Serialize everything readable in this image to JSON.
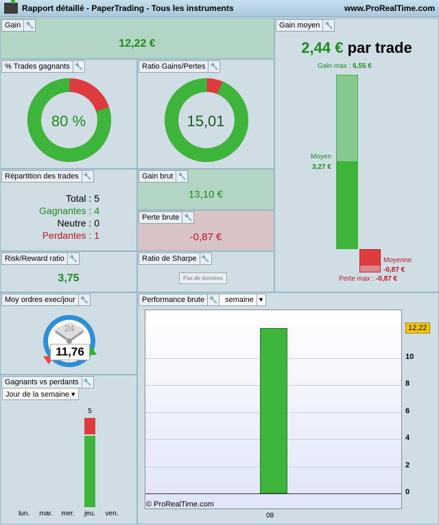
{
  "title": "Rapport détaillé - PaperTrading - Tous les instruments",
  "site": "www.ProRealTime.com",
  "logo": "DEMO",
  "gain": {
    "label": "Gain",
    "value": "12,22 €"
  },
  "gain_moyen": {
    "label": "Gain moyen",
    "value": "2,44 €",
    "suffix": "par trade",
    "gain_max_label": "Gain max :",
    "gain_max": "6,55 €",
    "moyen_label": "Moyen",
    "moyen": "3,27 €",
    "moyenne_label": "Moyenne",
    "moyenne": "-0,87 €",
    "perte_max_label": "Perte max :",
    "perte_max": "-0,87 €",
    "gain_max_num": 6.55,
    "moyen_num": 3.27,
    "perte_max_num": -0.87
  },
  "trades_gagnants": {
    "label": "% Trades gagnants",
    "value": "80 %",
    "fraction": 0.8
  },
  "ratio": {
    "label": "Ratio Gains/Pertes",
    "value": "15,01",
    "fraction": 0.9376
  },
  "repartition": {
    "label": "Répartition des trades",
    "total": "Total : 5",
    "gagnantes": "Gagnantes : 4",
    "neutre": "Neutre : 0",
    "perdantes": "Perdantes : 1"
  },
  "gain_brut": {
    "label": "Gain brut",
    "value": "13,10 €"
  },
  "perte_brute": {
    "label": "Perte brute",
    "value": "-0,87 €"
  },
  "risk": {
    "label": "Risk/Reward ratio",
    "value": "3,75"
  },
  "sharpe": {
    "label": "Ratio de Sharpe",
    "value": "Pas de données"
  },
  "ordres": {
    "label": "Moy ordres exec/jour",
    "value": "11,76",
    "clock": "24"
  },
  "gvp": {
    "label": "Gagnants vs perdants",
    "select": "Jour de la semaine",
    "days": [
      "lun.",
      "mar.",
      "mer.",
      "jeu.",
      "ven."
    ],
    "total_label": "5",
    "winners": [
      0,
      0,
      0,
      4,
      0
    ],
    "losers": [
      0,
      0,
      0,
      1,
      0
    ]
  },
  "perf": {
    "label": "Performance brute",
    "select": "semaine",
    "copyright": "© ProRealTime.com",
    "badge": "12,22"
  },
  "chart_data": {
    "type": "bar",
    "categories": [
      "08"
    ],
    "values": [
      12.22
    ],
    "ylim": [
      -1,
      13
    ],
    "yticks": [
      "0",
      "2",
      "4",
      "6",
      "8",
      "10"
    ],
    "title": "Performance brute"
  }
}
